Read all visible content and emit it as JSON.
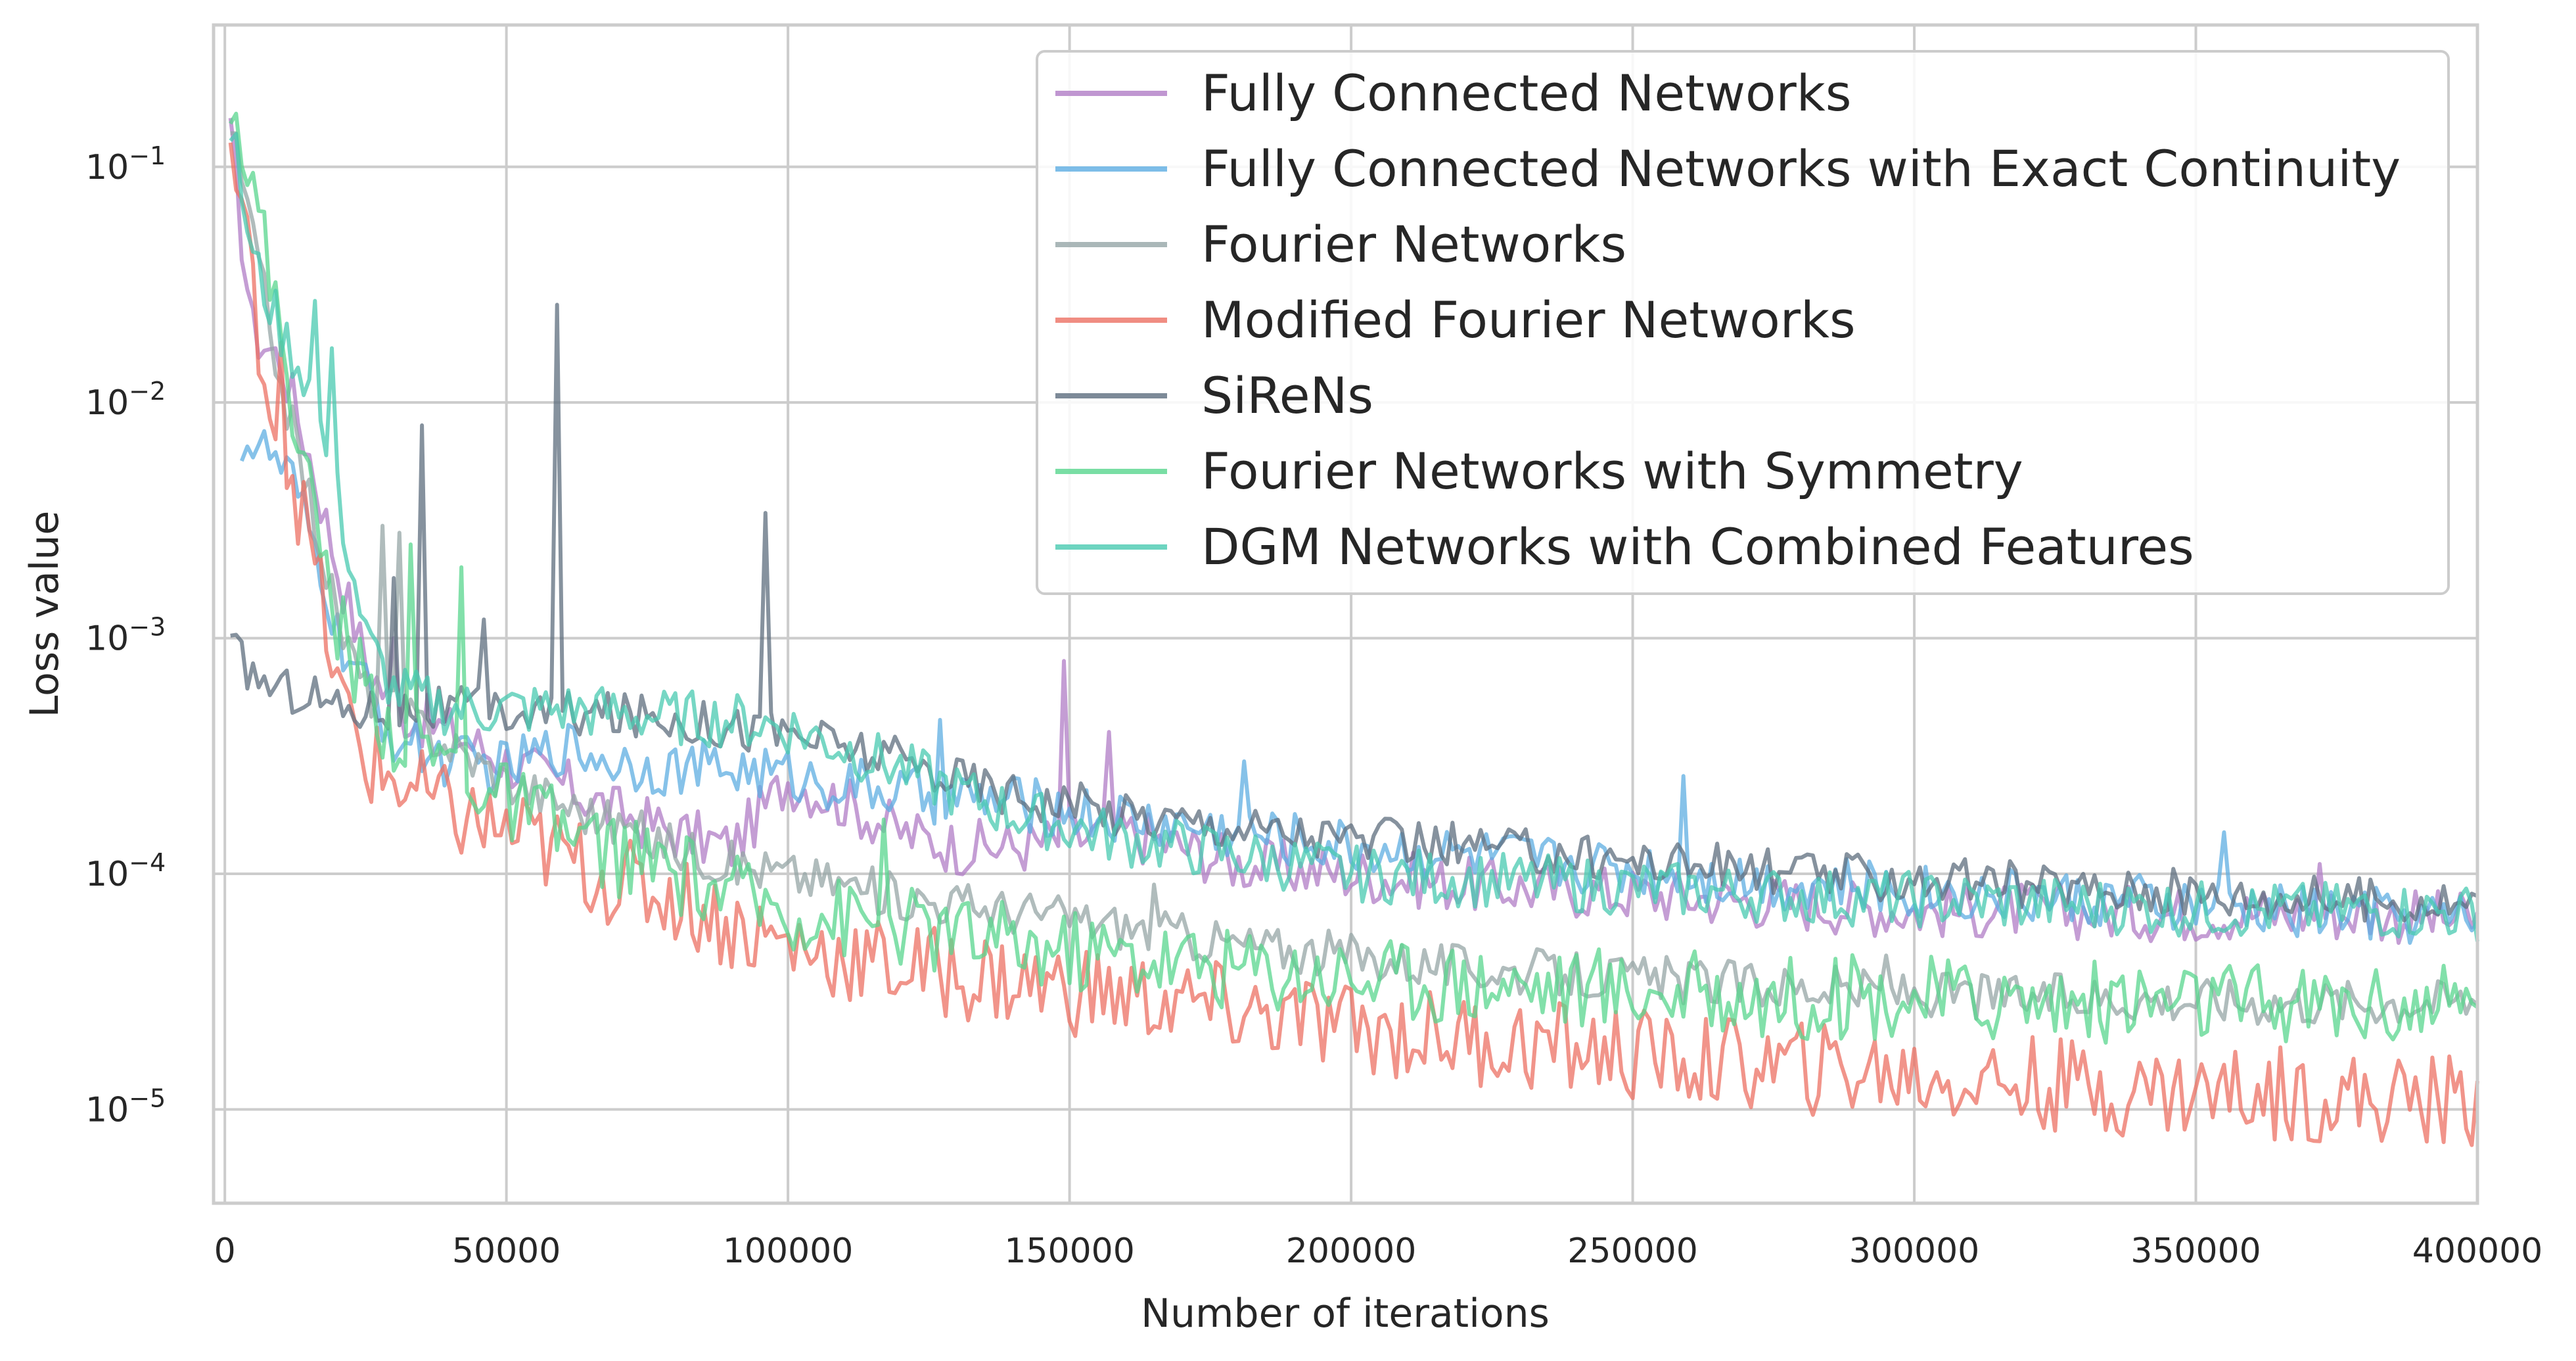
{
  "chart_data": {
    "type": "line",
    "xlabel": "Number of iterations",
    "ylabel": "Loss value",
    "xlim": [
      -2000,
      400000
    ],
    "ylim": [
      4e-06,
      0.4
    ],
    "yscale": "log",
    "grid": true,
    "legend_position": "top-right",
    "x_ticks": [
      0,
      50000,
      100000,
      150000,
      200000,
      250000,
      300000,
      350000,
      400000
    ],
    "x_tick_labels": [
      "0",
      "50000",
      "100000",
      "150000",
      "200000",
      "250000",
      "300000",
      "350000",
      "400000"
    ],
    "y_ticks": [
      1e-05,
      0.0001,
      0.001,
      0.01,
      0.1
    ],
    "y_tick_labels": [
      {
        "base": "10",
        "exp": "−5"
      },
      {
        "base": "10",
        "exp": "−4"
      },
      {
        "base": "10",
        "exp": "−3"
      },
      {
        "base": "10",
        "exp": "−2"
      },
      {
        "base": "10",
        "exp": "−1"
      }
    ],
    "series": [
      {
        "name": "Fully Connected Networks",
        "color": "#b07cc6",
        "points": [
          [
            1000,
            0.13
          ],
          [
            5000,
            0.02
          ],
          [
            10000,
            0.015
          ],
          [
            15000,
            0.006
          ],
          [
            20000,
            0.002
          ],
          [
            25000,
            0.0008
          ],
          [
            30000,
            0.0005
          ],
          [
            40000,
            0.0004
          ],
          [
            50000,
            0.0003
          ],
          [
            60000,
            0.00024
          ],
          [
            70000,
            0.00018
          ],
          [
            80000,
            0.00015
          ],
          [
            90000,
            0.00013
          ],
          [
            100000,
            0.00025
          ],
          [
            110000,
            0.0002
          ],
          [
            120000,
            0.00015
          ],
          [
            130000,
            0.00013
          ],
          [
            140000,
            0.00013
          ],
          [
            150000,
            0.00014
          ],
          [
            160000,
            0.00015
          ],
          [
            170000,
            0.00013
          ],
          [
            180000,
            0.00011
          ],
          [
            200000,
            0.0001
          ],
          [
            220000,
            9e-05
          ],
          [
            240000,
            8.5e-05
          ],
          [
            260000,
            8e-05
          ],
          [
            280000,
            7.5e-05
          ],
          [
            300000,
            7e-05
          ],
          [
            320000,
            7e-05
          ],
          [
            340000,
            6.8e-05
          ],
          [
            360000,
            6.8e-05
          ],
          [
            380000,
            6.8e-05
          ],
          [
            400000,
            6.3e-05
          ]
        ],
        "spikes": [
          [
            149000,
            0.0008
          ],
          [
            30000,
            0.001
          ],
          [
            157000,
            0.0004
          ],
          [
            372000,
            0.00011
          ]
        ]
      },
      {
        "name": "Fully Connected Networks with Exact Continuity",
        "color": "#5dade2",
        "points": [
          [
            3000,
            0.007
          ],
          [
            8000,
            0.006
          ],
          [
            12000,
            0.0045
          ],
          [
            17000,
            0.002
          ],
          [
            20000,
            0.001
          ],
          [
            25000,
            0.0006
          ],
          [
            30000,
            0.00038
          ],
          [
            40000,
            0.0003
          ],
          [
            50000,
            0.00028
          ],
          [
            60000,
            0.00035
          ],
          [
            70000,
            0.0003
          ],
          [
            80000,
            0.00028
          ],
          [
            90000,
            0.00028
          ],
          [
            100000,
            0.00026
          ],
          [
            120000,
            0.00022
          ],
          [
            140000,
            0.0002
          ],
          [
            160000,
            0.00017
          ],
          [
            180000,
            0.00015
          ],
          [
            200000,
            0.00013
          ],
          [
            220000,
            0.00012
          ],
          [
            240000,
            0.00011
          ],
          [
            260000,
            0.0001
          ],
          [
            280000,
            9e-05
          ],
          [
            300000,
            8.5e-05
          ],
          [
            320000,
            8e-05
          ],
          [
            340000,
            7.5e-05
          ],
          [
            360000,
            7e-05
          ],
          [
            380000,
            6.8e-05
          ],
          [
            400000,
            6.3e-05
          ]
        ],
        "spikes": [
          [
            127000,
            0.00045
          ],
          [
            181000,
            0.0003
          ],
          [
            259000,
            0.00026
          ],
          [
            355000,
            0.00015
          ]
        ]
      },
      {
        "name": "Fourier Networks",
        "color": "#95a5a6",
        "points": [
          [
            1000,
            0.15
          ],
          [
            5000,
            0.05
          ],
          [
            10000,
            0.012
          ],
          [
            15000,
            0.004
          ],
          [
            20000,
            0.0012
          ],
          [
            25000,
            0.0006
          ],
          [
            30000,
            0.0005
          ],
          [
            40000,
            0.00035
          ],
          [
            50000,
            0.00025
          ],
          [
            60000,
            0.0002
          ],
          [
            70000,
            0.00016
          ],
          [
            80000,
            0.00013
          ],
          [
            90000,
            0.00011
          ],
          [
            100000,
            0.0001
          ],
          [
            110000,
            9e-05
          ],
          [
            120000,
            8e-05
          ],
          [
            140000,
            7e-05
          ],
          [
            160000,
            6e-05
          ],
          [
            180000,
            5e-05
          ],
          [
            200000,
            4.5e-05
          ],
          [
            220000,
            4e-05
          ],
          [
            240000,
            3.7e-05
          ],
          [
            260000,
            3.5e-05
          ],
          [
            280000,
            3.3e-05
          ],
          [
            300000,
            3.1e-05
          ],
          [
            320000,
            3e-05
          ],
          [
            340000,
            3e-05
          ],
          [
            360000,
            2.9e-05
          ],
          [
            380000,
            2.9e-05
          ],
          [
            400000,
            2.9e-05
          ]
        ],
        "spikes": [
          [
            28000,
            0.003
          ],
          [
            31000,
            0.0028
          ],
          [
            165000,
            9e-05
          ],
          [
            295000,
            4.5e-05
          ]
        ]
      },
      {
        "name": "Modified Fourier Networks",
        "color": "#ec7063",
        "points": [
          [
            1000,
            0.12
          ],
          [
            5000,
            0.03
          ],
          [
            8000,
            0.01
          ],
          [
            12000,
            0.005
          ],
          [
            16000,
            0.002
          ],
          [
            20000,
            0.0006
          ],
          [
            25000,
            0.0003
          ],
          [
            30000,
            0.00025
          ],
          [
            40000,
            0.00018
          ],
          [
            50000,
            0.00015
          ],
          [
            60000,
            0.00012
          ],
          [
            70000,
            9e-05
          ],
          [
            80000,
            8e-05
          ],
          [
            90000,
            6e-05
          ],
          [
            100000,
            5e-05
          ],
          [
            120000,
            4e-05
          ],
          [
            140000,
            3.5e-05
          ],
          [
            160000,
            3e-05
          ],
          [
            180000,
            2.6e-05
          ],
          [
            200000,
            2.2e-05
          ],
          [
            220000,
            2e-05
          ],
          [
            240000,
            1.8e-05
          ],
          [
            260000,
            1.6e-05
          ],
          [
            280000,
            1.5e-05
          ],
          [
            300000,
            1.4e-05
          ],
          [
            320000,
            1.3e-05
          ],
          [
            340000,
            1.2e-05
          ],
          [
            360000,
            1.2e-05
          ],
          [
            380000,
            1.1e-05
          ],
          [
            400000,
            1.1e-05
          ]
        ],
        "spikes": [
          [
            10000,
            0.018
          ]
        ]
      },
      {
        "name": "SiReNs",
        "color": "#5d6d7e",
        "points": [
          [
            1000,
            0.0009
          ],
          [
            5000,
            0.0007
          ],
          [
            10000,
            0.0006
          ],
          [
            15000,
            0.0006
          ],
          [
            20000,
            0.0005
          ],
          [
            25000,
            0.0005
          ],
          [
            30000,
            0.0005
          ],
          [
            40000,
            0.0005
          ],
          [
            50000,
            0.00048
          ],
          [
            60000,
            0.00048
          ],
          [
            70000,
            0.00047
          ],
          [
            80000,
            0.00046
          ],
          [
            90000,
            0.00042
          ],
          [
            100000,
            0.0004
          ],
          [
            120000,
            0.0003
          ],
          [
            140000,
            0.00022
          ],
          [
            160000,
            0.00018
          ],
          [
            180000,
            0.00016
          ],
          [
            200000,
            0.00014
          ],
          [
            220000,
            0.00013
          ],
          [
            240000,
            0.00012
          ],
          [
            260000,
            0.00011
          ],
          [
            280000,
            0.0001
          ],
          [
            300000,
            9.5e-05
          ],
          [
            320000,
            9e-05
          ],
          [
            340000,
            8.5e-05
          ],
          [
            360000,
            8e-05
          ],
          [
            380000,
            7.8e-05
          ],
          [
            400000,
            7.5e-05
          ]
        ],
        "spikes": [
          [
            59000,
            0.026
          ],
          [
            35000,
            0.008
          ],
          [
            96000,
            0.0034
          ],
          [
            30000,
            0.0018
          ],
          [
            46000,
            0.0012
          ]
        ]
      },
      {
        "name": "Fourier Networks with Symmetry",
        "color": "#58d68d",
        "points": [
          [
            1000,
            0.23
          ],
          [
            5000,
            0.08
          ],
          [
            10000,
            0.02
          ],
          [
            15000,
            0.004
          ],
          [
            20000,
            0.0012
          ],
          [
            25000,
            0.0006
          ],
          [
            30000,
            0.0004
          ],
          [
            40000,
            0.0003
          ],
          [
            50000,
            0.0002
          ],
          [
            60000,
            0.00015
          ],
          [
            70000,
            0.00012
          ],
          [
            80000,
            0.0001
          ],
          [
            90000,
            8e-05
          ],
          [
            100000,
            7e-05
          ],
          [
            120000,
            6e-05
          ],
          [
            140000,
            5e-05
          ],
          [
            160000,
            4.5e-05
          ],
          [
            180000,
            4e-05
          ],
          [
            200000,
            3.7e-05
          ],
          [
            220000,
            3.5e-05
          ],
          [
            240000,
            3.3e-05
          ],
          [
            260000,
            3.1e-05
          ],
          [
            280000,
            3e-05
          ],
          [
            300000,
            3e-05
          ],
          [
            320000,
            2.9e-05
          ],
          [
            340000,
            2.9e-05
          ],
          [
            360000,
            2.8e-05
          ],
          [
            380000,
            2.8e-05
          ],
          [
            400000,
            2.7e-05
          ]
        ],
        "spikes": [
          [
            42000,
            0.002
          ],
          [
            33000,
            0.0025
          ],
          [
            117000,
            0.00017
          ]
        ]
      },
      {
        "name": "DGM Networks with Combined Features",
        "color": "#48c9b0",
        "points": [
          [
            1000,
            0.15
          ],
          [
            5000,
            0.04
          ],
          [
            10000,
            0.02
          ],
          [
            15000,
            0.012
          ],
          [
            20000,
            0.004
          ],
          [
            25000,
            0.001
          ],
          [
            30000,
            0.0006
          ],
          [
            40000,
            0.0005
          ],
          [
            50000,
            0.0005
          ],
          [
            60000,
            0.0005
          ],
          [
            70000,
            0.00048
          ],
          [
            80000,
            0.00046
          ],
          [
            90000,
            0.00045
          ],
          [
            100000,
            0.00042
          ],
          [
            120000,
            0.00028
          ],
          [
            140000,
            0.00018
          ],
          [
            160000,
            0.00014
          ],
          [
            180000,
            0.00012
          ],
          [
            200000,
            0.0001
          ],
          [
            220000,
            9.5e-05
          ],
          [
            240000,
            9e-05
          ],
          [
            260000,
            8.5e-05
          ],
          [
            280000,
            8e-05
          ],
          [
            300000,
            7.8e-05
          ],
          [
            320000,
            7.5e-05
          ],
          [
            340000,
            7.2e-05
          ],
          [
            360000,
            7e-05
          ],
          [
            380000,
            7e-05
          ],
          [
            400000,
            6.8e-05
          ]
        ],
        "spikes": [
          [
            16000,
            0.027
          ],
          [
            19000,
            0.017
          ]
        ]
      }
    ]
  }
}
